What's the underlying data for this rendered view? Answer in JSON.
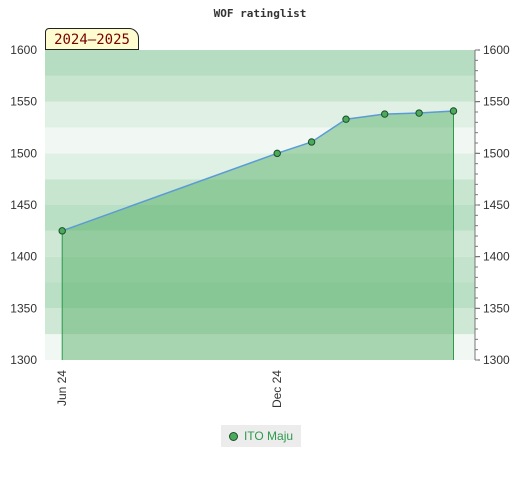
{
  "chart_data": {
    "type": "line",
    "title": "WOF ratinglist",
    "season_label": "2024–2025",
    "ylim": [
      1300,
      1600
    ],
    "yticks": [
      1300,
      1350,
      1400,
      1450,
      1500,
      1550,
      1600
    ],
    "xticks": [
      {
        "label": "Jun 24",
        "x": 2024.42
      },
      {
        "label": "Dec 24",
        "x": 2024.92
      }
    ],
    "xlim": [
      2024.38,
      2025.38
    ],
    "series": [
      {
        "name": "ITO Maju",
        "color": "#5b9bd5",
        "fill": "#4caa5e",
        "marker": "#4caa5e",
        "x": [
          2024.42,
          2024.92,
          2025.0,
          2025.08,
          2025.17,
          2025.25,
          2025.33
        ],
        "values": [
          1425,
          1500,
          1511,
          1533,
          1538,
          1539,
          1541
        ]
      }
    ]
  },
  "legend": {
    "label": "ITO Maju"
  }
}
